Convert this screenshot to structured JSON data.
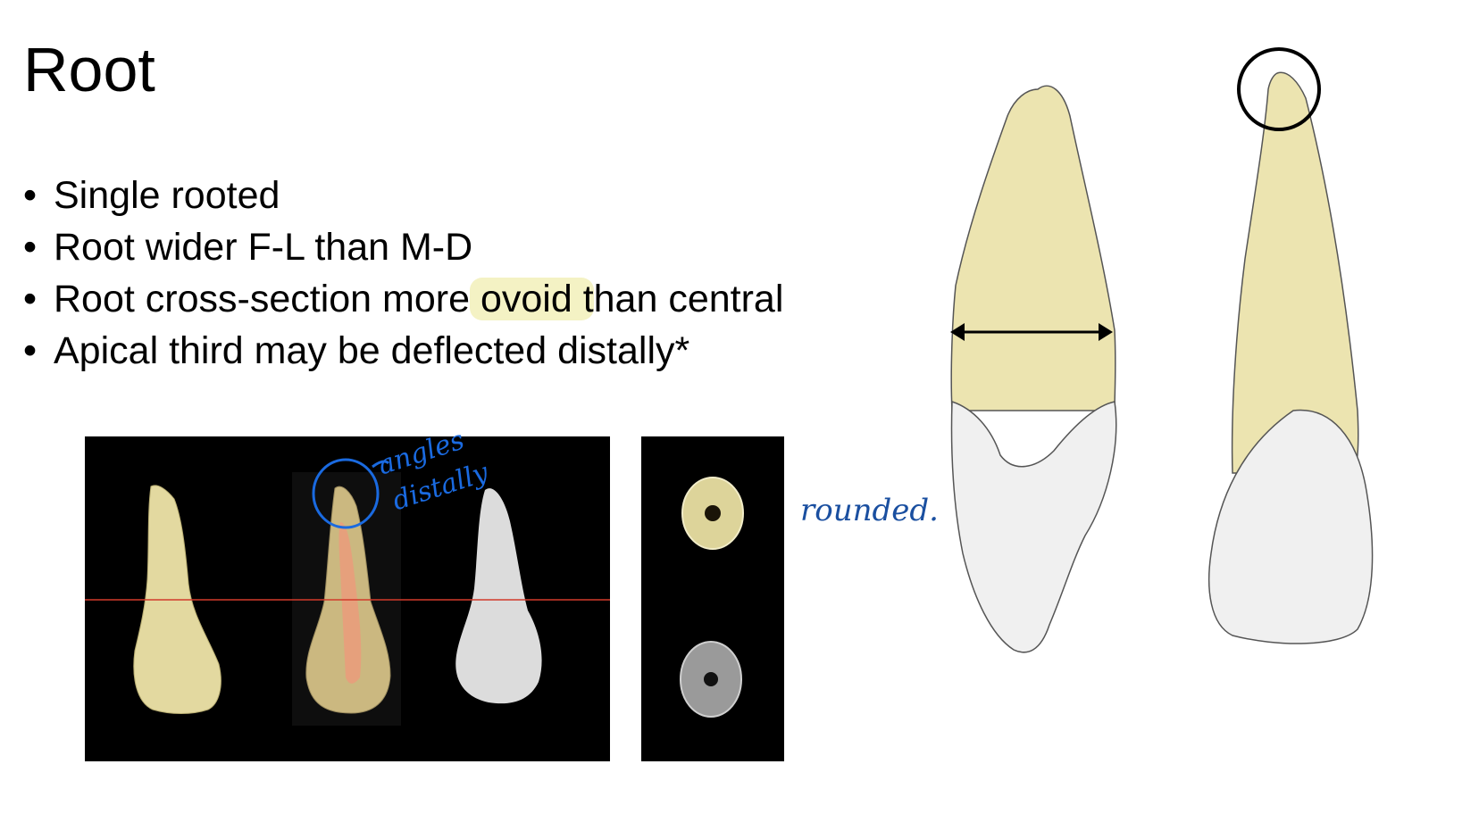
{
  "slide": {
    "title": "Root",
    "bullets": [
      {
        "text": "Single rooted"
      },
      {
        "text": "Root wider F-L than M-D"
      },
      {
        "pre": "Root cross-section more",
        "highlight": " ovoid t",
        "post": "han central"
      },
      {
        "text": "Apical third may be deflected distally*"
      }
    ]
  },
  "annotations": {
    "angles": "angles",
    "distally": "distally",
    "rounded": "rounded."
  },
  "colors": {
    "highlight": "#f4f2c4",
    "ink_blue": "#1a6ae0",
    "ink_navy": "#1a4fa0",
    "root_yellow": "#ece4b0",
    "crown_white": "#f0f0f0"
  }
}
